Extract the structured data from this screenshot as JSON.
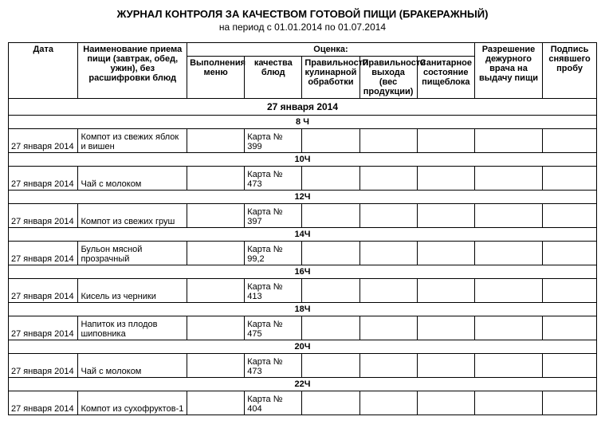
{
  "title": "ЖУРНАЛ КОНТРОЛЯ ЗА КАЧЕСТВОМ ГОТОВОЙ ПИЩИ (БРАКЕРАЖНЫЙ)",
  "subtitle": "на   период с 01.01.2014 по 01.07.2014",
  "headers": {
    "date": "Дата",
    "meal_name": "Наименование приема пищи (завтрак, обед, ужин), без расшифровки блюд",
    "evaluation": "Оценка:",
    "eval_menu": "Выполнения меню",
    "eval_quality": "качества блюд",
    "eval_culinary": "Правильности кулинарной обработки",
    "eval_output": "Правильности выхода (вес продукции)",
    "eval_sanitary": "Санитарное состояние пищеблока",
    "permission": "Разрешение дежурного врача на выдачу пищи",
    "signature": "Подпись снявшего пробу"
  },
  "group_date": "27 января 2014",
  "rows": [
    {
      "time": "8 Ч",
      "date": "27 января 2014",
      "name": "Компот из свежих яблок и вишен",
      "card": "Карта № 399"
    },
    {
      "time": "10Ч",
      "date": "27 января 2014",
      "name": "Чай с молоком",
      "card": "Карта № 473"
    },
    {
      "time": "12Ч",
      "date": "27 января 2014",
      "name": "Компот из свежих груш",
      "card": "Карта № 397"
    },
    {
      "time": "14Ч",
      "date": "27 января 2014",
      "name": "Бульон мясной прозрачный",
      "card": "Карта № 99,2"
    },
    {
      "time": "16Ч",
      "date": "27 января 2014",
      "name": "Кисель из черники",
      "card": "Карта № 413"
    },
    {
      "time": "18Ч",
      "date": "27 января 2014",
      "name": "Напиток из плодов шиповника",
      "card": "Карта № 475"
    },
    {
      "time": "20Ч",
      "date": "27 января 2014",
      "name": "Чай с молоком",
      "card": "Карта № 473"
    },
    {
      "time": "22Ч",
      "date": "27 января 2014",
      "name": "Компот из сухофруктов-1",
      "card": "Карта № 404"
    }
  ]
}
